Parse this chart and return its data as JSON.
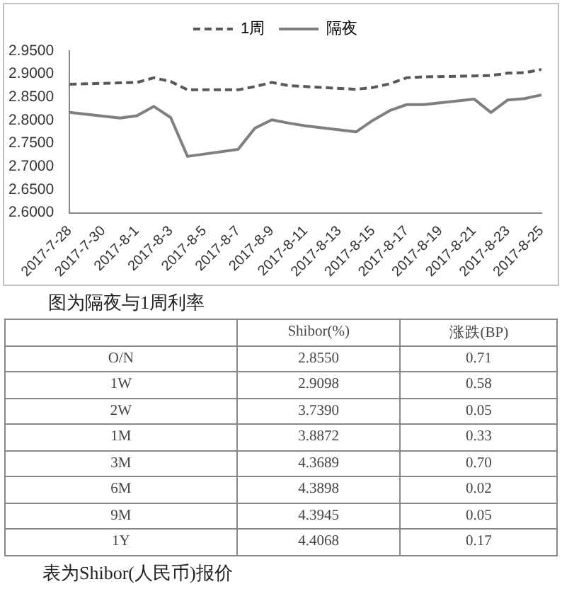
{
  "chart_data": [
    {
      "type": "line",
      "annotations": [
        "图为隔夜与1周利率"
      ],
      "x": [
        "2017-07-28",
        "2017-07-31",
        "2017-08-01",
        "2017-08-02",
        "2017-08-03",
        "2017-08-04",
        "2017-08-07",
        "2017-08-08",
        "2017-08-09",
        "2017-08-10",
        "2017-08-11",
        "2017-08-14",
        "2017-08-15",
        "2017-08-16",
        "2017-08-17",
        "2017-08-18",
        "2017-08-21",
        "2017-08-22",
        "2017-08-23",
        "2017-08-24",
        "2017-08-25"
      ],
      "series": [
        {
          "name": "1周",
          "color": "#595959",
          "line_style": "dashed",
          "values": [
            2.878,
            2.881,
            2.882,
            2.892,
            2.884,
            2.866,
            2.866,
            2.873,
            2.882,
            2.875,
            2.873,
            2.867,
            2.871,
            2.879,
            2.892,
            2.894,
            2.896,
            2.897,
            2.902,
            2.903,
            2.91
          ]
        },
        {
          "name": "隔夜",
          "color": "#7f7f7f",
          "line_style": "solid",
          "values": [
            2.817,
            2.805,
            2.81,
            2.83,
            2.806,
            2.722,
            2.737,
            2.783,
            2.801,
            2.794,
            2.788,
            2.775,
            2.8,
            2.821,
            2.834,
            2.834,
            2.846,
            2.817,
            2.844,
            2.847,
            2.855
          ]
        }
      ],
      "xlim": [
        "2017-07-28",
        "2017-08-25"
      ],
      "xticks": [
        {
          "value": "2017-07-28",
          "label": "2017-7-28"
        },
        {
          "value": "2017-07-30",
          "label": "2017-7-30"
        },
        {
          "value": "2017-08-01",
          "label": "2017-8-1"
        },
        {
          "value": "2017-08-03",
          "label": "2017-8-3"
        },
        {
          "value": "2017-08-05",
          "label": "2017-8-5"
        },
        {
          "value": "2017-08-07",
          "label": "2017-8-7"
        },
        {
          "value": "2017-08-09",
          "label": "2017-8-9"
        },
        {
          "value": "2017-08-11",
          "label": "2017-8-11"
        },
        {
          "value": "2017-08-13",
          "label": "2017-8-13"
        },
        {
          "value": "2017-08-15",
          "label": "2017-8-15"
        },
        {
          "value": "2017-08-17",
          "label": "2017-8-17"
        },
        {
          "value": "2017-08-19",
          "label": "2017-8-19"
        },
        {
          "value": "2017-08-21",
          "label": "2017-8-21"
        },
        {
          "value": "2017-08-23",
          "label": "2017-8-23"
        },
        {
          "value": "2017-08-25",
          "label": "2017-8-25"
        }
      ],
      "ylim": [
        2.6,
        2.95
      ],
      "yticks": [
        {
          "value": 2.6,
          "label": "2.6000"
        },
        {
          "value": 2.65,
          "label": "2.6500"
        },
        {
          "value": 2.7,
          "label": "2.7000"
        },
        {
          "value": 2.75,
          "label": "2.7500"
        },
        {
          "value": 2.8,
          "label": "2.8000"
        },
        {
          "value": 2.85,
          "label": "2.8500"
        },
        {
          "value": 2.9,
          "label": "2.9000"
        },
        {
          "value": 2.95,
          "label": "2.9500"
        }
      ],
      "legend": "top",
      "marker": "none"
    },
    {
      "type": "other",
      "annotations": [
        "表为Shibor(人民币)报价"
      ],
      "categories": [
        "O/N",
        "1W",
        "2W",
        "1M",
        "3M",
        "6M",
        "9M",
        "1Y"
      ],
      "series": [
        {
          "name": "Shibor(%)",
          "values": [
            2.855,
            2.9098,
            3.739,
            3.8872,
            4.3689,
            4.3898,
            4.3945,
            4.4068
          ],
          "value_labels": [
            "2.8550",
            "2.9098",
            "3.7390",
            "3.8872",
            "4.3689",
            "4.3898",
            "4.3945",
            "4.4068"
          ]
        },
        {
          "name": "涨跌(BP)",
          "values": [
            0.71,
            0.58,
            0.05,
            0.33,
            0.7,
            0.02,
            0.05,
            0.17
          ],
          "value_labels": [
            "0.71",
            "0.58",
            "0.05",
            "0.33",
            "0.70",
            "0.02",
            "0.05",
            "0.17"
          ]
        }
      ]
    }
  ]
}
